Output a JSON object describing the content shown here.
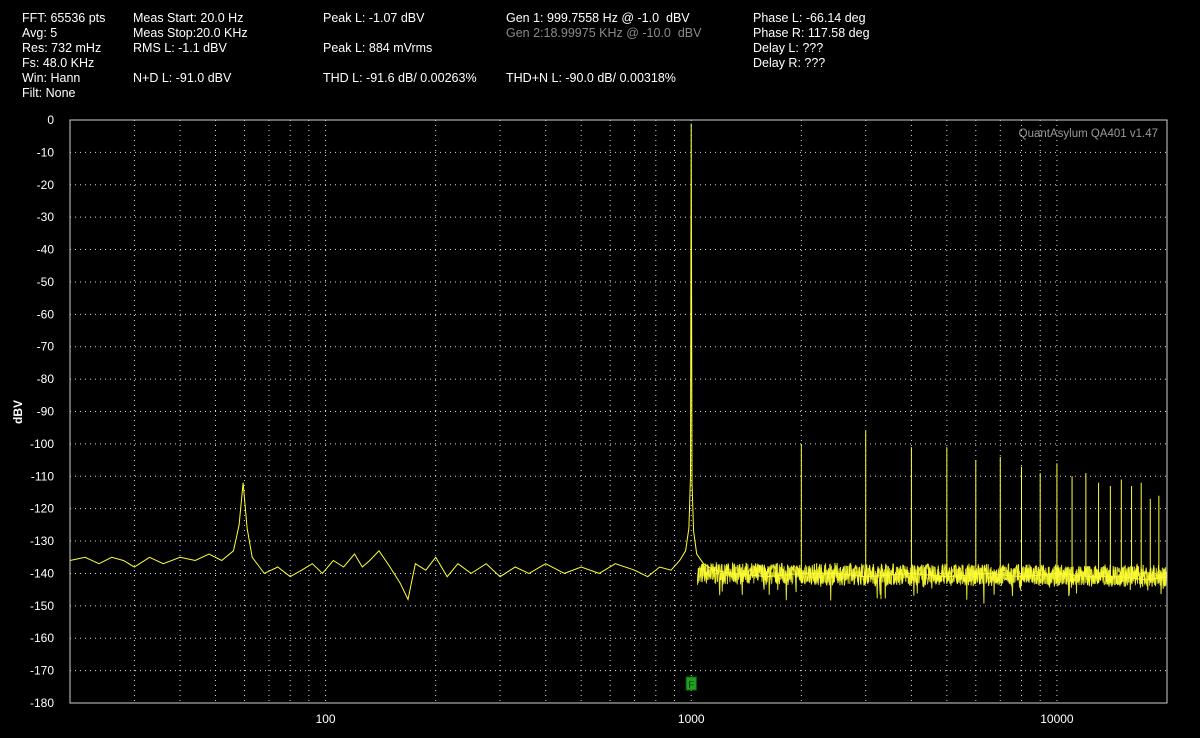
{
  "readouts": {
    "fft": "FFT: 65536 pts",
    "avg": "Avg: 5",
    "res": "Res: 732 mHz",
    "fs": "Fs: 48.0 KHz",
    "win": "Win: Hann",
    "filt": "Filt: None",
    "meas_start": "Meas Start: 20.0 Hz",
    "meas_stop": "Meas Stop:20.0 KHz",
    "rms_l": "RMS L: -1.1 dBV",
    "nd_l": "N+D L: -91.0 dBV",
    "peak_l_dbv": "Peak L: -1.07 dBV",
    "peak_l_vrms": "Peak L: 884 mVrms",
    "thd_l": "THD L: -91.6 dB/ 0.00263%",
    "gen1": "Gen 1: 999.7558 Hz @ -1.0  dBV",
    "gen2": "Gen 2:18.99975 KHz @ -10.0  dBV",
    "thdn_l": "THD+N L: -90.0 dB/ 0.00318%",
    "phase_l": "Phase L: -66.14 deg",
    "phase_r": "Phase R: 117.58 deg",
    "delay_l": "Delay L: ???",
    "delay_r": "Delay R: ???"
  },
  "watermark": "QuantAsylum QA401 v1.47",
  "marker_label": "F",
  "colors": {
    "background": "#000000",
    "trace": "#ffff33",
    "grid": "#d8d8d8",
    "frame": "#cfcfcf",
    "marker": "#1fa31f",
    "inactive_text": "#8a8a8a"
  },
  "chart_data": {
    "type": "line",
    "x_scale": "log",
    "xlim": [
      20,
      20000
    ],
    "ylim": [
      -180,
      0
    ],
    "ylabel": "dBV",
    "xlabel": "",
    "x_ticks": [
      100,
      1000,
      10000
    ],
    "x_tick_labels": [
      "100",
      "1000",
      "10000"
    ],
    "y_ticks": [
      0,
      -10,
      -20,
      -30,
      -40,
      -50,
      -60,
      -70,
      -80,
      -90,
      -100,
      -110,
      -120,
      -130,
      -140,
      -150,
      -160,
      -170,
      -180
    ],
    "y_tick_labels": [
      "0",
      "-10",
      "-20",
      "-30",
      "-40",
      "-50",
      "-60",
      "-70",
      "-80",
      "-90",
      "-100",
      "-110",
      "-120",
      "-130",
      "-140",
      "-150",
      "-160",
      "-170",
      "-180"
    ],
    "grid": true,
    "marker_x": 1000,
    "noise_floor_dbv": -140,
    "series": [
      {
        "points": [
          [
            20,
            -136
          ],
          [
            22,
            -135
          ],
          [
            24,
            -137
          ],
          [
            26,
            -135
          ],
          [
            28,
            -136
          ],
          [
            30,
            -138
          ],
          [
            33,
            -135
          ],
          [
            36,
            -137
          ],
          [
            40,
            -135
          ],
          [
            44,
            -136
          ],
          [
            48,
            -134
          ],
          [
            52,
            -136
          ],
          [
            56,
            -133
          ],
          [
            58,
            -125
          ],
          [
            59.5,
            -112
          ],
          [
            61,
            -126
          ],
          [
            63,
            -135
          ],
          [
            68,
            -140
          ],
          [
            74,
            -138
          ],
          [
            80,
            -141
          ],
          [
            86,
            -139
          ],
          [
            92,
            -137
          ],
          [
            98,
            -140
          ],
          [
            105,
            -136
          ],
          [
            112,
            -138
          ],
          [
            120,
            -134
          ],
          [
            126,
            -138
          ],
          [
            132,
            -136
          ],
          [
            140,
            -133
          ],
          [
            150,
            -138
          ],
          [
            160,
            -143
          ],
          [
            168,
            -148
          ],
          [
            176,
            -137
          ],
          [
            188,
            -139
          ],
          [
            200,
            -135
          ],
          [
            215,
            -141
          ],
          [
            230,
            -137
          ],
          [
            250,
            -140
          ],
          [
            275,
            -137
          ],
          [
            300,
            -141
          ],
          [
            330,
            -138
          ],
          [
            360,
            -140
          ],
          [
            400,
            -137
          ],
          [
            450,
            -140
          ],
          [
            500,
            -138
          ],
          [
            560,
            -140
          ],
          [
            620,
            -137
          ],
          [
            700,
            -139
          ],
          [
            760,
            -141
          ],
          [
            820,
            -138
          ],
          [
            880,
            -139
          ],
          [
            930,
            -136
          ],
          [
            965,
            -133
          ],
          [
            985,
            -126
          ],
          [
            995,
            -110
          ],
          [
            999.76,
            -1.07
          ],
          [
            1005,
            -112
          ],
          [
            1015,
            -127
          ],
          [
            1035,
            -134
          ],
          [
            1080,
            -137
          ],
          [
            1150,
            -139
          ],
          [
            1300,
            -140
          ],
          [
            1600,
            -141
          ],
          [
            2000,
            -140
          ],
          [
            2500,
            -140
          ],
          [
            3000,
            -141
          ],
          [
            4000,
            -140
          ],
          [
            5000,
            -141
          ],
          [
            6500,
            -140
          ],
          [
            8000,
            -141
          ],
          [
            10000,
            -140
          ],
          [
            12500,
            -141
          ],
          [
            15000,
            -141
          ],
          [
            17500,
            -142
          ],
          [
            20000,
            -141
          ]
        ]
      }
    ],
    "harmonics": [
      {
        "x": 2000,
        "y": -100
      },
      {
        "x": 3000,
        "y": -96
      },
      {
        "x": 4000,
        "y": -101
      },
      {
        "x": 5000,
        "y": -101
      },
      {
        "x": 6000,
        "y": -105
      },
      {
        "x": 7000,
        "y": -104
      },
      {
        "x": 8000,
        "y": -107
      },
      {
        "x": 9000,
        "y": -109
      },
      {
        "x": 10000,
        "y": -106
      },
      {
        "x": 11000,
        "y": -110
      },
      {
        "x": 12000,
        "y": -109
      },
      {
        "x": 13000,
        "y": -112
      },
      {
        "x": 14000,
        "y": -113
      },
      {
        "x": 15000,
        "y": -111
      },
      {
        "x": 16000,
        "y": -113
      },
      {
        "x": 17000,
        "y": -112
      },
      {
        "x": 18000,
        "y": -117
      },
      {
        "x": 19000,
        "y": -116
      }
    ]
  }
}
